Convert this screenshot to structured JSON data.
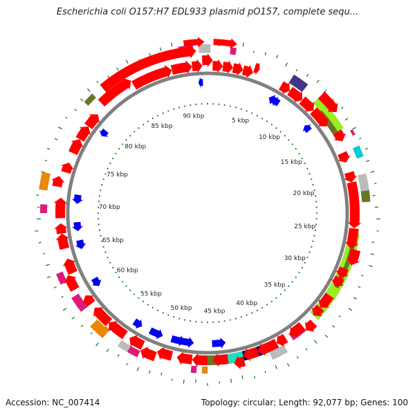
{
  "title": "Escherichia coli O157:H7 EDL933 plasmid pO157, complete sequ...",
  "footer": {
    "accession": "Accession: NC_007414",
    "summary": "Topology: circular; Length: 92,077 bp; Genes: 100"
  },
  "map": {
    "length_kbp": 92.077,
    "scale_labels": [
      "5 kbp",
      "10 kbp",
      "15 kbp",
      "20 kbp",
      "25 kbp",
      "30 kbp",
      "35 kbp",
      "40 kbp",
      "45 kbp",
      "50 kbp",
      "55 kbp",
      "60 kbp",
      "65 kbp",
      "70 kbp",
      "75 kbp",
      "80 kbp",
      "85 kbp",
      "90 kbp"
    ],
    "colors": {
      "gene": "#ff0000",
      "gene_reverse": "#0000ee",
      "backbone": "#808080",
      "gc_ticks": "#1f7a1f",
      "feature_magenta": "#e0197a",
      "feature_lime": "#99ee22",
      "feature_olive": "#667722",
      "feature_navy": "#000077",
      "feature_teal": "#22ddbb",
      "feature_orange": "#ee8800",
      "feature_cyan": "#00cccc",
      "feature_gray": "#bbbbbb",
      "feature_slate": "#443388"
    }
  }
}
